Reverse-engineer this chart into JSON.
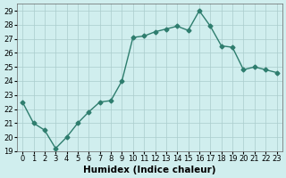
{
  "x": [
    0,
    1,
    2,
    3,
    4,
    5,
    6,
    7,
    8,
    9,
    10,
    11,
    12,
    13,
    14,
    15,
    16,
    17,
    18,
    19,
    20,
    21,
    22,
    23
  ],
  "y": [
    22.5,
    21.0,
    20.5,
    19.2,
    20.0,
    21.0,
    21.8,
    22.5,
    22.6,
    24.0,
    27.1,
    27.2,
    27.5,
    27.7,
    27.9,
    27.6,
    29.0,
    27.9,
    26.5,
    26.4,
    24.8,
    25.0,
    24.8,
    24.6
  ],
  "xlabel": "Humidex (Indice chaleur)",
  "xlim": [
    -0.5,
    23.5
  ],
  "ylim": [
    19,
    29.5
  ],
  "yticks": [
    19,
    20,
    21,
    22,
    23,
    24,
    25,
    26,
    27,
    28,
    29
  ],
  "xticks": [
    0,
    1,
    2,
    3,
    4,
    5,
    6,
    7,
    8,
    9,
    10,
    11,
    12,
    13,
    14,
    15,
    16,
    17,
    18,
    19,
    20,
    21,
    22,
    23
  ],
  "line_color": "#2e7d6e",
  "marker_color": "#2e7d6e",
  "bg_color": "#d0eeee",
  "grid_color": "#aacccc",
  "label_fontsize": 7.5,
  "tick_fontsize": 6
}
